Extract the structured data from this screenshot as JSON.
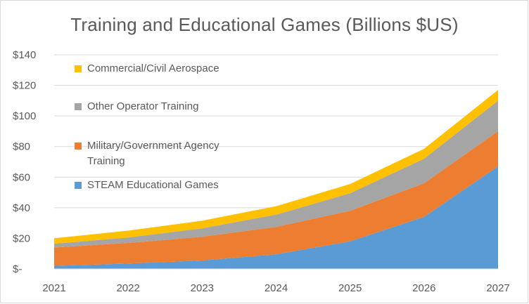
{
  "chart_data": {
    "type": "area",
    "stacked": true,
    "title": "Training and Educational Games (Billions $US)",
    "x": [
      "2021",
      "2022",
      "2023",
      "2024",
      "2025",
      "2026",
      "2027"
    ],
    "y_ticks": [
      "$-",
      "$20",
      "$40",
      "$60",
      "$80",
      "$100",
      "$120",
      "$140"
    ],
    "ylim": [
      0,
      140
    ],
    "grid": true,
    "legend_position": "top-left",
    "series": [
      {
        "name": "STEAM Educational Games",
        "color": "#5b9bd5",
        "values": [
          2,
          3.5,
          5.5,
          9.5,
          18,
          34,
          67
        ]
      },
      {
        "name": "Military/Government Agency Training",
        "color": "#ed7d31",
        "values": [
          12,
          13.5,
          15.5,
          18,
          20,
          22,
          23
        ]
      },
      {
        "name": "Other Operator Training",
        "color": "#a5a5a5",
        "values": [
          2.5,
          3.5,
          5.5,
          8,
          11.5,
          16,
          20
        ]
      },
      {
        "name": "Commercial/Civil Aerospace",
        "color": "#ffc000",
        "values": [
          3.5,
          4.5,
          5,
          5.5,
          6,
          6.5,
          7
        ]
      }
    ]
  }
}
